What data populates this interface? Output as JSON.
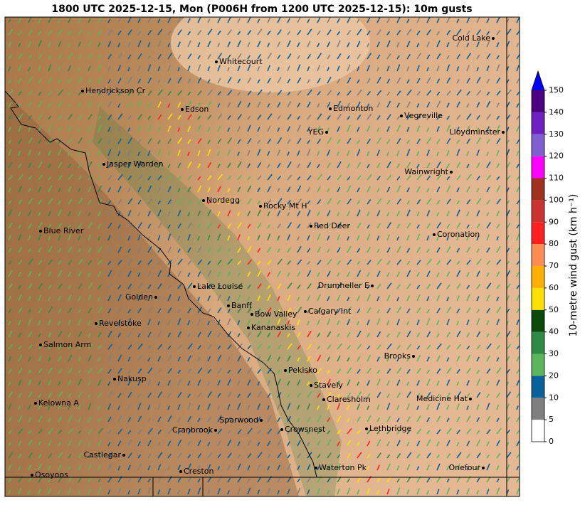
{
  "title": "1800 UTC 2025-12-15, Mon (P006H from 1200 UTC 2025-12-15): 10m gusts",
  "places": [
    "Cold Lake",
    "Whitecourt",
    "Hendrickson Cr",
    "Edson",
    "Edmonton",
    "Vegreville",
    "YEG",
    "Lloydminster",
    "Jasper Warden",
    "Wainwright",
    "Nordegg",
    "Rocky Mt H",
    "Red Deer",
    "Blue River",
    "Coronation",
    "Lake Louise",
    "Drumheller E",
    "Golden",
    "Banff",
    "Bow Valley",
    "Calgary Int",
    "Revelstoke",
    "Kananaskis",
    "Salmon Arm",
    "Brooks",
    "Pekisko",
    "Nakusp",
    "Stavely",
    "Claresholm",
    "Medicine Hat",
    "Kelowna A",
    "Sparwood",
    "Cranbrook",
    "Crowsnest",
    "Lethbridge",
    "Castlegar",
    "Creston",
    "Waterton Pk",
    "Onefour",
    "Osoyoos"
  ],
  "colorbar": {
    "label": "10-metre wind gust (km h⁻¹)",
    "ticks": [
      0,
      5,
      10,
      20,
      30,
      40,
      50,
      60,
      70,
      80,
      90,
      100,
      110,
      120,
      130,
      140,
      150
    ],
    "colors": [
      "#ffffff",
      "#7f7f7f",
      "#08619b",
      "#5bb55b",
      "#2e8b45",
      "#0b4a0b",
      "#ffe000",
      "#ffb000",
      "#ff8c50",
      "#ff2020",
      "#cc3333",
      "#a03020",
      "#ff00ff",
      "#8060d0",
      "#7020c0",
      "#4b0082"
    ],
    "extend_color": "#0000ff"
  }
}
